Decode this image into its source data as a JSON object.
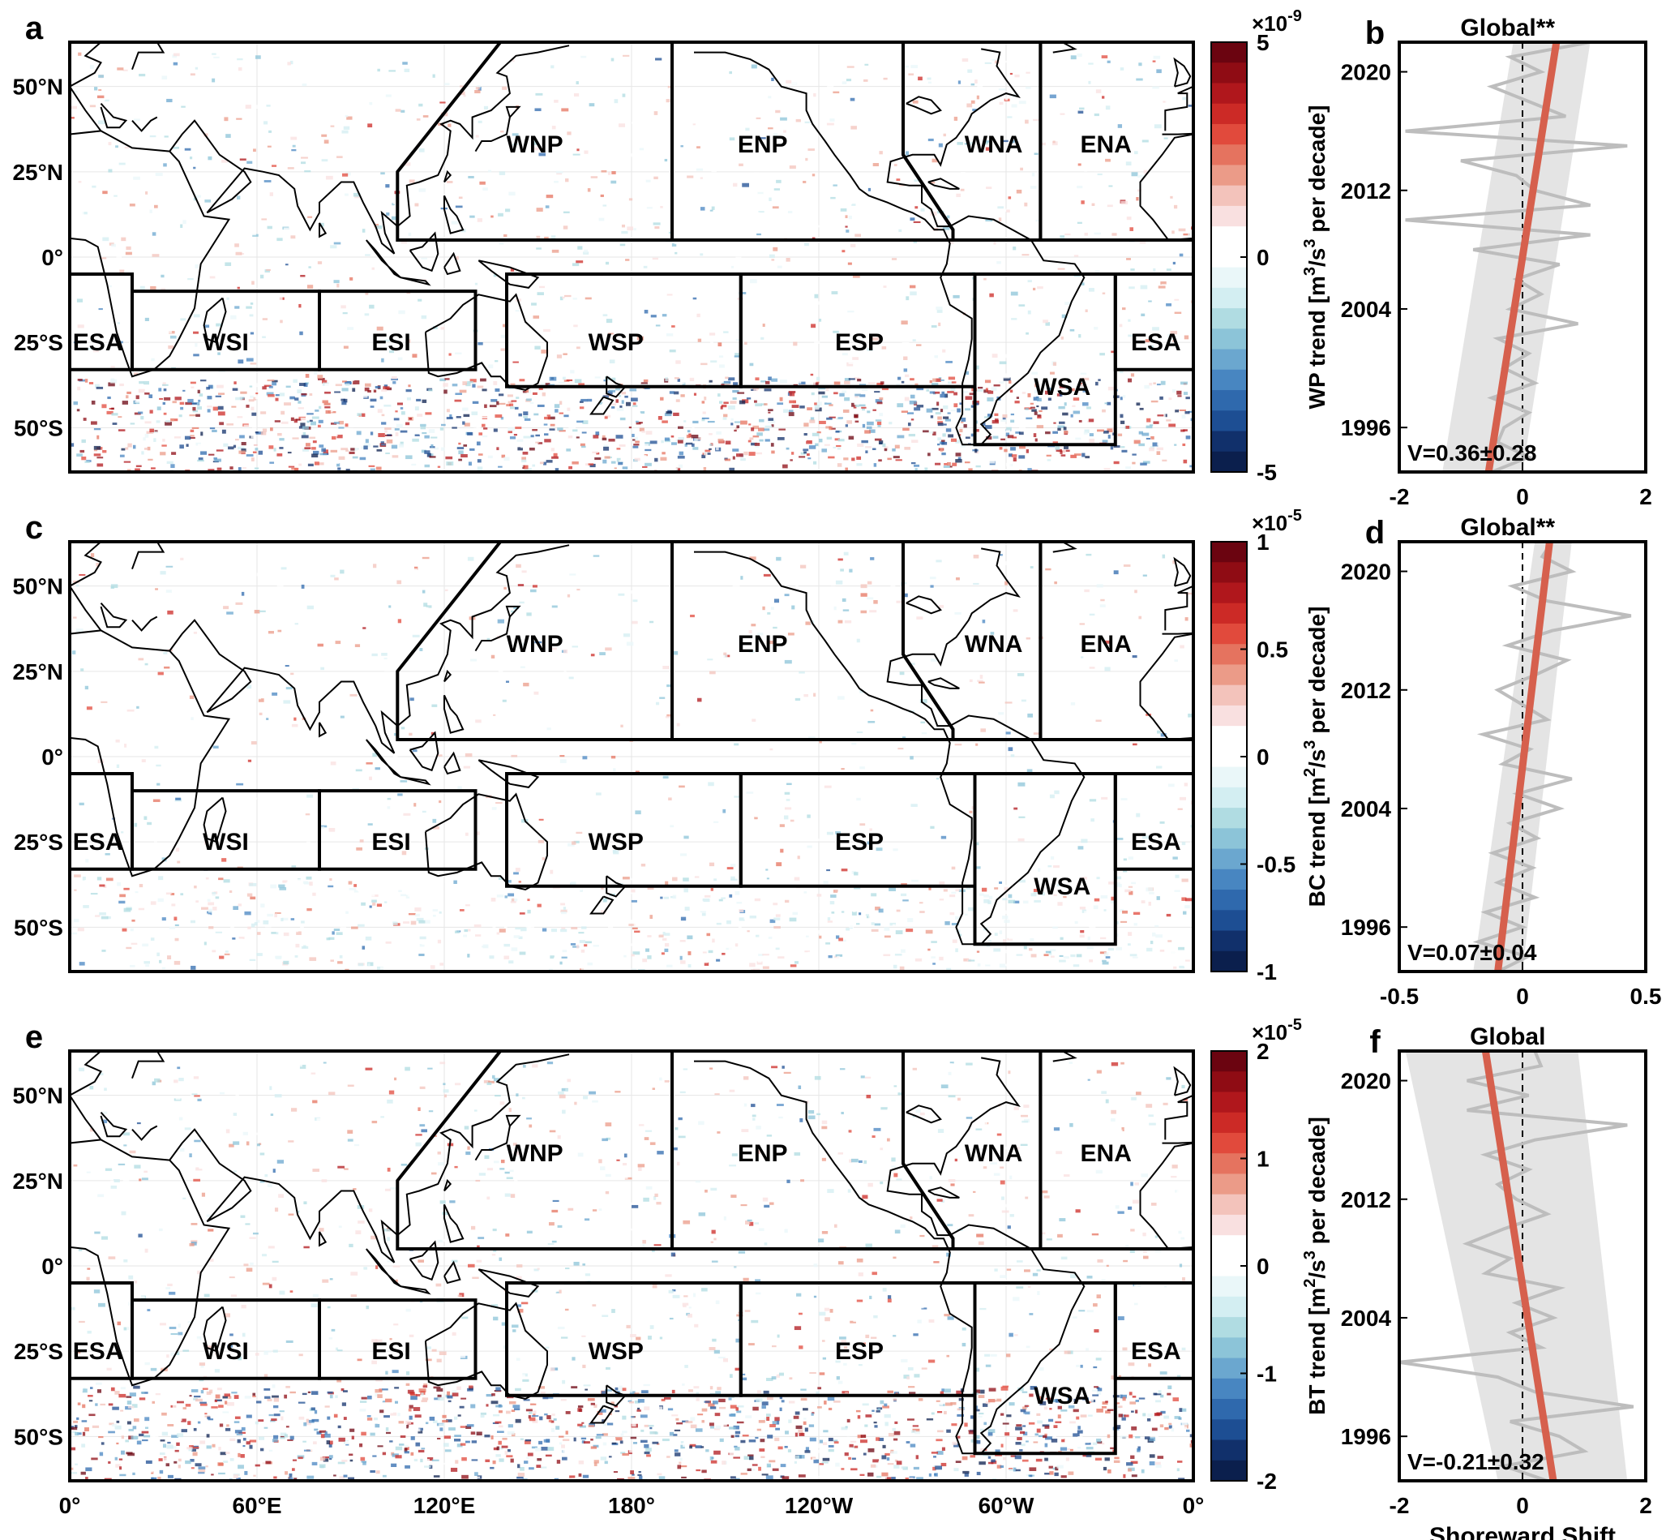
{
  "colors": {
    "trend_line": "#d6604d",
    "series_line": "#bdbdbd",
    "band": "#d9d9d9",
    "land": "#ffffff",
    "coast": "#000000",
    "colormap": [
      "#0b1f4d",
      "#11306b",
      "#1d4e93",
      "#2f69ad",
      "#4886c1",
      "#6ba7cf",
      "#8cc4d8",
      "#b0dce2",
      "#d3eef2",
      "#eaf7f9",
      "#ffffff",
      "#ffffff",
      "#f9e0e0",
      "#f3c3bb",
      "#eb9b88",
      "#e5735f",
      "#e14a3c",
      "#cc2a26",
      "#b0171c",
      "#8f0c14",
      "#6b0410"
    ]
  },
  "map_axis": {
    "lat_ticks": [
      "50°N",
      "25°N",
      "0°",
      "25°S",
      "50°S"
    ],
    "lon_ticks": [
      "0°",
      "60°E",
      "120°E",
      "180°",
      "120°W",
      "60°W",
      "0°"
    ]
  },
  "panels": [
    {
      "map_letter": "a",
      "series_letter": "b",
      "colorbar": {
        "exponent": "×10",
        "exponent_power": "-9",
        "ticks": [
          "5",
          "0",
          "-5"
        ]
      },
      "ylabel_prefix": "WP trend [m",
      "ylabel_mid": "/s",
      "ylabel_suffix": " per decade]",
      "ylabel_p1": "3",
      "ylabel_p2": "3",
      "regions": [
        "WNP",
        "ENP",
        "WNA",
        "ENA",
        "ESA",
        "WSI",
        "ESI",
        "WSP",
        "ESP",
        "WSA",
        "ESA"
      ]
    },
    {
      "map_letter": "c",
      "series_letter": "d",
      "colorbar": {
        "exponent": "×10",
        "exponent_power": "-5",
        "ticks": [
          "1",
          "0.5",
          "0",
          "-0.5",
          "-1"
        ]
      },
      "ylabel_prefix": "BC trend [m",
      "ylabel_mid": "/s",
      "ylabel_suffix": " per decade]",
      "ylabel_p1": "2",
      "ylabel_p2": "3",
      "regions": [
        "WNP",
        "ENP",
        "WNA",
        "ENA",
        "ESA",
        "WSI",
        "ESI",
        "WSP",
        "ESP",
        "WSA",
        "ESA"
      ]
    },
    {
      "map_letter": "e",
      "series_letter": "f",
      "colorbar": {
        "exponent": "×10",
        "exponent_power": "-5",
        "ticks": [
          "2",
          "1",
          "0",
          "-1",
          "-2"
        ]
      },
      "ylabel_prefix": "BT trend [m",
      "ylabel_mid": "/s",
      "ylabel_suffix": " per decade]",
      "ylabel_p1": "2",
      "ylabel_p2": "3",
      "regions": [
        "WNP",
        "ENP",
        "WNA",
        "ENA",
        "ESA",
        "WSI",
        "ESI",
        "WSP",
        "ESP",
        "WSA",
        "ESA"
      ]
    }
  ],
  "chart_data": [
    {
      "type": "line",
      "title": "Global**",
      "xlim": [
        -2,
        2
      ],
      "xticks": [
        "-2",
        "0",
        "2"
      ],
      "ylim": [
        1993,
        2022
      ],
      "yticks": [
        "2020",
        "2012",
        "2004",
        "1996"
      ],
      "annotation": "V=0.36±0.28",
      "years": [
        1993,
        1994,
        1995,
        1996,
        1997,
        1998,
        1999,
        2000,
        2001,
        2002,
        2003,
        2004,
        2005,
        2006,
        2007,
        2008,
        2009,
        2010,
        2011,
        2012,
        2013,
        2014,
        2015,
        2016,
        2017,
        2018,
        2019,
        2020,
        2021,
        2022
      ],
      "values": [
        -0.5,
        0.1,
        -0.4,
        -0.3,
        0.1,
        -0.5,
        0.2,
        -0.3,
        0.1,
        -0.4,
        0.9,
        -0.2,
        0.3,
        -0.1,
        0.6,
        -0.8,
        1.1,
        -1.9,
        1.1,
        0.2,
        -0.1,
        -1.0,
        1.7,
        -1.9,
        0.7,
        0.1,
        -0.5,
        0.3,
        -0.2,
        1.1
      ],
      "trend": {
        "y_start": 1993,
        "x_start": -0.55,
        "y_end": 2022,
        "x_end": 0.55
      },
      "band": {
        "y_start": 1993,
        "left_start": -1.3,
        "right_start": 0.0,
        "y_end": 2022,
        "left_end": -0.15,
        "right_end": 1.1
      }
    },
    {
      "type": "line",
      "title": "Global**",
      "xlim": [
        -0.5,
        0.5
      ],
      "xticks": [
        "-0.5",
        "0",
        "0.5"
      ],
      "ylim": [
        1993,
        2022
      ],
      "yticks": [
        "2020",
        "2012",
        "2004",
        "1996"
      ],
      "annotation": "V=0.07±0.04",
      "years": [
        1993,
        1994,
        1995,
        1996,
        1997,
        1998,
        1999,
        2000,
        2001,
        2002,
        2003,
        2004,
        2005,
        2006,
        2007,
        2008,
        2009,
        2010,
        2011,
        2012,
        2013,
        2014,
        2015,
        2016,
        2017,
        2018,
        2019,
        2020,
        2021,
        2022
      ],
      "values": [
        -0.1,
        0.02,
        -0.18,
        0.0,
        -0.15,
        0.05,
        -0.1,
        0.04,
        -0.12,
        0.06,
        -0.05,
        0.15,
        -0.02,
        0.2,
        -0.08,
        0.03,
        -0.16,
        0.1,
        0.0,
        -0.1,
        0.05,
        0.18,
        -0.06,
        0.12,
        0.44,
        0.1,
        -0.04,
        0.2,
        0.08,
        0.12
      ],
      "trend": {
        "y_start": 1993,
        "x_start": -0.1,
        "y_end": 2022,
        "x_end": 0.11
      },
      "band": {
        "y_start": 1993,
        "left_start": -0.2,
        "right_start": 0.0,
        "y_end": 2022,
        "left_end": 0.05,
        "right_end": 0.2
      }
    },
    {
      "type": "line",
      "title": "Global",
      "xlim": [
        -2,
        2
      ],
      "xticks": [
        "-2",
        "0",
        "2"
      ],
      "xlabel": "Shoreward Shift",
      "ylim": [
        1993,
        2022
      ],
      "yticks": [
        "2020",
        "2012",
        "2004",
        "1996"
      ],
      "annotation": "V=-0.21±0.32",
      "years": [
        1993,
        1994,
        1995,
        1996,
        1997,
        1998,
        1999,
        2000,
        2001,
        2002,
        2003,
        2004,
        2005,
        2006,
        2007,
        2008,
        2009,
        2010,
        2011,
        2012,
        2013,
        2014,
        2015,
        2016,
        2017,
        2018,
        2019,
        2020,
        2021,
        2022
      ],
      "values": [
        0.4,
        -0.3,
        1.0,
        0.6,
        -0.2,
        1.8,
        0.2,
        -0.4,
        -2.0,
        0.3,
        -0.2,
        0.5,
        -0.1,
        0.6,
        -0.6,
        -0.2,
        -0.9,
        -0.3,
        0.4,
        -0.1,
        -0.4,
        0.1,
        -0.6,
        0.2,
        1.7,
        -0.9,
        0.1,
        -0.9,
        0.3,
        0.2
      ],
      "trend": {
        "y_start": 1993,
        "x_start": 0.5,
        "y_end": 2022,
        "x_end": -0.6
      },
      "band": {
        "y_start": 1993,
        "left_start": -0.4,
        "right_start": 1.7,
        "y_end": 2022,
        "left_end": -1.9,
        "right_end": 0.9
      }
    }
  ]
}
